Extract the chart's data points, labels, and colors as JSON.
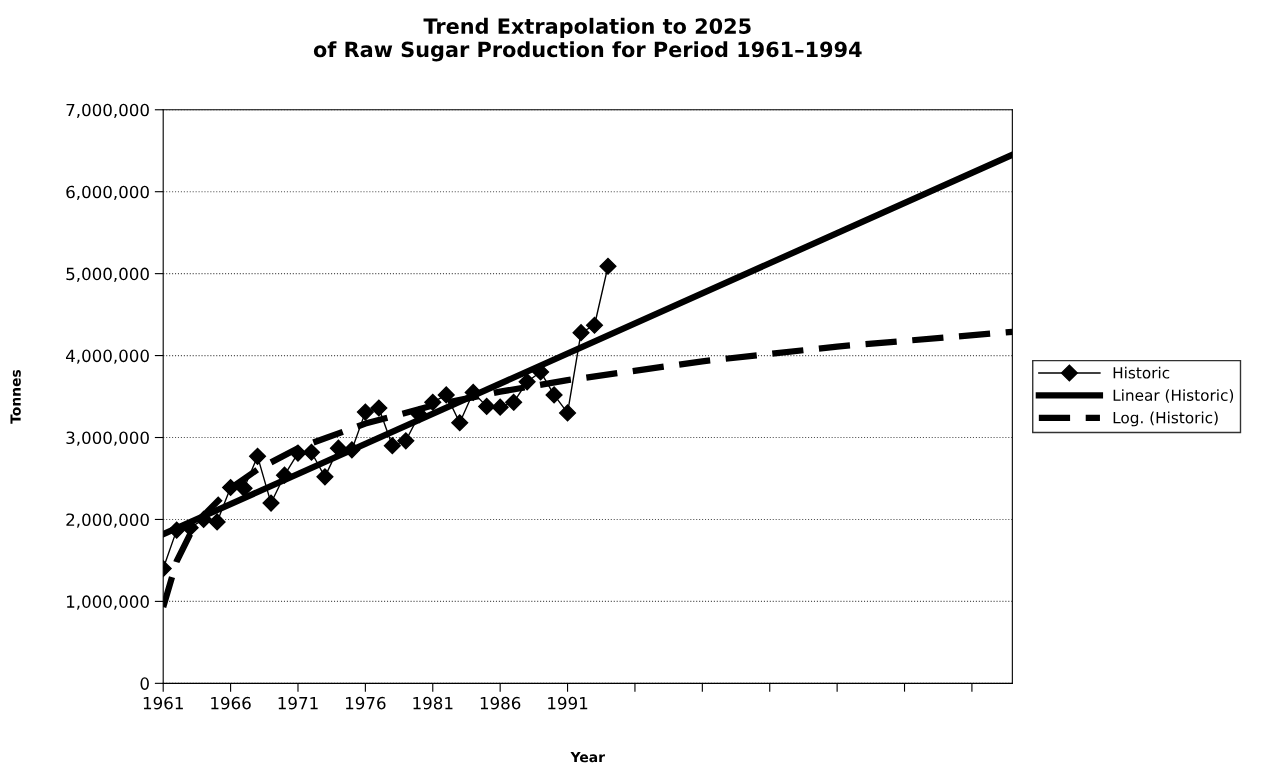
{
  "chart_data": {
    "type": "line",
    "title": "Trend Extrapolation to 2025\nof Raw Sugar Production for Period 1961–1994",
    "xlabel": "Year",
    "ylabel": "Tonnes",
    "series": [
      {
        "name": "Historic",
        "color": "#000000",
        "marker": "diamond",
        "line_style": "solid",
        "x": [
          1961,
          1962,
          1963,
          1964,
          1965,
          1966,
          1967,
          1968,
          1969,
          1970,
          1971,
          1972,
          1973,
          1974,
          1975,
          1976,
          1977,
          1978,
          1979,
          1980,
          1981,
          1982,
          1983,
          1984,
          1985,
          1986,
          1987,
          1988,
          1989,
          1990,
          1991,
          1992,
          1993,
          1994
        ],
        "values": [
          1400000,
          1870000,
          1900000,
          2000000,
          1970000,
          2390000,
          2380000,
          2770000,
          2200000,
          2540000,
          2810000,
          2820000,
          2520000,
          2870000,
          2850000,
          3310000,
          3360000,
          2900000,
          2960000,
          3280000,
          3430000,
          3520000,
          3180000,
          3550000,
          3380000,
          3370000,
          3430000,
          3680000,
          3800000,
          3520000,
          3300000,
          4280000,
          4370000,
          5090000
        ]
      },
      {
        "name": "Linear (Historic)",
        "color": "#000000",
        "marker": "none",
        "line_style": "solid",
        "x": [
          1961,
          2024
        ],
        "values": [
          1820000,
          6450000
        ]
      },
      {
        "name": "Log. (Historic)",
        "color": "#000000",
        "marker": "none",
        "line_style": "dashed",
        "x": [
          1961,
          1962,
          1963,
          1964,
          1966,
          1968,
          1971,
          1976,
          1981,
          1986,
          1991,
          2001,
          2011,
          2024
        ],
        "values": [
          930000,
          1490000,
          1820000,
          2050000,
          2380000,
          2610000,
          2870000,
          3170000,
          3390000,
          3560000,
          3700000,
          3930000,
          4110000,
          4290000
        ]
      }
    ],
    "xlim": [
      1961,
      2024
    ],
    "xticks": [
      1961,
      1966,
      1971,
      1976,
      1981,
      1986,
      1991,
      {
        "value": 1996,
        "label": null
      },
      {
        "value": 2001,
        "label": null
      },
      {
        "value": 2006,
        "label": null
      },
      {
        "value": 2011,
        "label": null
      },
      {
        "value": 2016,
        "label": null
      },
      {
        "value": 2021,
        "label": null
      }
    ],
    "ylim": [
      0,
      7000000
    ],
    "yticks": [
      {
        "value": 0,
        "label": "0"
      },
      {
        "value": 1000000,
        "label": "1,000,000"
      },
      {
        "value": 2000000,
        "label": "2,000,000"
      },
      {
        "value": 3000000,
        "label": "3,000,000"
      },
      {
        "value": 4000000,
        "label": "4,000,000"
      },
      {
        "value": 5000000,
        "label": "5,000,000"
      },
      {
        "value": 6000000,
        "label": "6,000,000"
      },
      {
        "value": 7000000,
        "label": "7,000,000"
      }
    ],
    "grid": "y",
    "legend": "right"
  }
}
